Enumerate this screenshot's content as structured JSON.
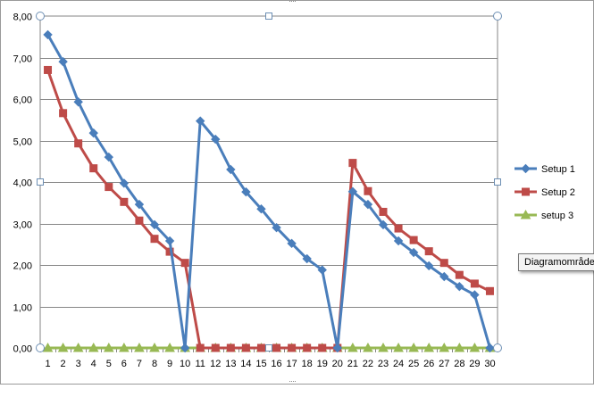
{
  "tooltip": {
    "text": "Diagramområde"
  },
  "colors": {
    "grid": "#868686",
    "background": "#ffffff"
  },
  "chart_data": {
    "type": "line",
    "title": "",
    "xlabel": "",
    "ylabel": "",
    "x": [
      1,
      2,
      3,
      4,
      5,
      6,
      7,
      8,
      9,
      10,
      11,
      12,
      13,
      14,
      15,
      16,
      17,
      18,
      19,
      20,
      21,
      22,
      23,
      24,
      25,
      26,
      27,
      28,
      29,
      30
    ],
    "ylim": [
      0,
      8
    ],
    "yticks": [
      "0,00",
      "1,00",
      "2,00",
      "3,00",
      "4,00",
      "5,00",
      "6,00",
      "7,00",
      "8,00"
    ],
    "grid": true,
    "legend_position": "right",
    "series": [
      {
        "name": "Setup 1",
        "color": "#4a7ebb",
        "marker": "diamond",
        "values": [
          7.55,
          6.9,
          5.93,
          5.18,
          4.6,
          3.97,
          3.46,
          2.97,
          2.58,
          0,
          5.47,
          5.03,
          4.3,
          3.76,
          3.35,
          2.9,
          2.52,
          2.15,
          1.88,
          0,
          3.77,
          3.46,
          2.97,
          2.58,
          2.3,
          1.98,
          1.72,
          1.48,
          1.28,
          0
        ]
      },
      {
        "name": "Setup 2",
        "color": "#be4b48",
        "marker": "square",
        "values": [
          6.7,
          5.66,
          4.93,
          4.33,
          3.88,
          3.52,
          3.07,
          2.63,
          2.32,
          2.05,
          0,
          0,
          0,
          0,
          0,
          0,
          0,
          0,
          0,
          0,
          4.46,
          3.78,
          3.28,
          2.88,
          2.6,
          2.33,
          2.05,
          1.76,
          1.55,
          1.37
        ]
      },
      {
        "name": "setup 3",
        "color": "#98b954",
        "marker": "triangle",
        "values": [
          0,
          0,
          0,
          0,
          0,
          0,
          0,
          0,
          0,
          0,
          0,
          0,
          0,
          0,
          0,
          0,
          0,
          0,
          0,
          0,
          0,
          0,
          0,
          0,
          0,
          0,
          0,
          0,
          0,
          0
        ]
      }
    ]
  }
}
